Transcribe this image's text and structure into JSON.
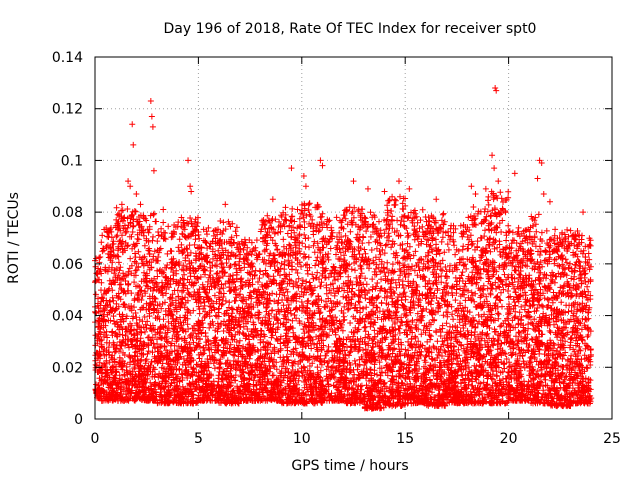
{
  "chart_data": {
    "type": "scatter",
    "title": "Day 196 of 2018, Rate Of TEC Index for receiver spt0",
    "xlabel": "GPS time / hours",
    "ylabel": "ROTI / TECUs",
    "xlim": [
      0,
      25
    ],
    "ylim": [
      0,
      0.14
    ],
    "grid": true,
    "marker": "+",
    "color": "#ff0000",
    "x_ticks": [
      {
        "value": 0,
        "label": "0"
      },
      {
        "value": 5,
        "label": "5"
      },
      {
        "value": 10,
        "label": "10"
      },
      {
        "value": 15,
        "label": "15"
      },
      {
        "value": 20,
        "label": "20"
      },
      {
        "value": 25,
        "label": "25"
      }
    ],
    "y_ticks": [
      {
        "value": 0,
        "label": "0"
      },
      {
        "value": 0.02,
        "label": "0.02"
      },
      {
        "value": 0.04,
        "label": "0.04"
      },
      {
        "value": 0.06,
        "label": "0.06"
      },
      {
        "value": 0.08,
        "label": "0.08"
      },
      {
        "value": 0.1,
        "label": "0.1"
      },
      {
        "value": 0.12,
        "label": "0.12"
      },
      {
        "value": 0.14,
        "label": "0.14"
      }
    ],
    "data_range_hours": [
      0,
      24
    ],
    "series": [
      {
        "name": "ROTI",
        "points": [
          [
            1.1,
            0.079
          ],
          [
            1.3,
            0.083
          ],
          [
            1.6,
            0.092
          ],
          [
            1.7,
            0.09
          ],
          [
            1.8,
            0.114
          ],
          [
            1.85,
            0.106
          ],
          [
            2.0,
            0.087
          ],
          [
            2.2,
            0.083
          ],
          [
            2.7,
            0.123
          ],
          [
            2.75,
            0.117
          ],
          [
            2.8,
            0.113
          ],
          [
            2.85,
            0.096
          ],
          [
            3.3,
            0.081
          ],
          [
            4.5,
            0.1
          ],
          [
            4.6,
            0.09
          ],
          [
            4.65,
            0.088
          ],
          [
            6.3,
            0.083
          ],
          [
            8.6,
            0.085
          ],
          [
            9.5,
            0.097
          ],
          [
            10.1,
            0.094
          ],
          [
            10.2,
            0.09
          ],
          [
            10.9,
            0.1
          ],
          [
            11.0,
            0.098
          ],
          [
            12.5,
            0.092
          ],
          [
            13.2,
            0.089
          ],
          [
            14.0,
            0.088
          ],
          [
            14.7,
            0.092
          ],
          [
            15.2,
            0.089
          ],
          [
            16.5,
            0.085
          ],
          [
            18.2,
            0.09
          ],
          [
            18.4,
            0.087
          ],
          [
            18.9,
            0.089
          ],
          [
            19.2,
            0.102
          ],
          [
            19.3,
            0.097
          ],
          [
            19.35,
            0.128
          ],
          [
            19.4,
            0.127
          ],
          [
            19.5,
            0.092
          ],
          [
            20.3,
            0.095
          ],
          [
            21.5,
            0.1
          ],
          [
            21.6,
            0.099
          ],
          [
            21.4,
            0.093
          ],
          [
            21.7,
            0.087
          ],
          [
            22.0,
            0.084
          ],
          [
            23.6,
            0.08
          ]
        ],
        "band_model": [
          {
            "start": 0.0,
            "end": 0.3,
            "min": 0.008,
            "max": 0.064
          },
          {
            "start": 0.3,
            "end": 1.0,
            "min": 0.007,
            "max": 0.074
          },
          {
            "start": 1.0,
            "end": 2.0,
            "min": 0.007,
            "max": 0.082
          },
          {
            "start": 2.0,
            "end": 3.0,
            "min": 0.007,
            "max": 0.08
          },
          {
            "start": 3.0,
            "end": 4.0,
            "min": 0.006,
            "max": 0.076
          },
          {
            "start": 4.0,
            "end": 5.0,
            "min": 0.006,
            "max": 0.078
          },
          {
            "start": 5.0,
            "end": 6.0,
            "min": 0.007,
            "max": 0.074
          },
          {
            "start": 6.0,
            "end": 7.0,
            "min": 0.006,
            "max": 0.078
          },
          {
            "start": 7.0,
            "end": 8.0,
            "min": 0.007,
            "max": 0.07
          },
          {
            "start": 8.0,
            "end": 9.0,
            "min": 0.007,
            "max": 0.08
          },
          {
            "start": 9.0,
            "end": 10.0,
            "min": 0.006,
            "max": 0.082
          },
          {
            "start": 10.0,
            "end": 11.0,
            "min": 0.006,
            "max": 0.084
          },
          {
            "start": 11.0,
            "end": 12.0,
            "min": 0.007,
            "max": 0.078
          },
          {
            "start": 12.0,
            "end": 13.0,
            "min": 0.006,
            "max": 0.082
          },
          {
            "start": 13.0,
            "end": 14.0,
            "min": 0.004,
            "max": 0.08
          },
          {
            "start": 14.0,
            "end": 15.0,
            "min": 0.005,
            "max": 0.086
          },
          {
            "start": 15.0,
            "end": 16.0,
            "min": 0.006,
            "max": 0.082
          },
          {
            "start": 16.0,
            "end": 17.0,
            "min": 0.005,
            "max": 0.08
          },
          {
            "start": 17.0,
            "end": 18.0,
            "min": 0.006,
            "max": 0.076
          },
          {
            "start": 18.0,
            "end": 19.0,
            "min": 0.006,
            "max": 0.082
          },
          {
            "start": 19.0,
            "end": 20.0,
            "min": 0.006,
            "max": 0.088
          },
          {
            "start": 20.0,
            "end": 21.0,
            "min": 0.007,
            "max": 0.074
          },
          {
            "start": 21.0,
            "end": 22.0,
            "min": 0.006,
            "max": 0.08
          },
          {
            "start": 22.0,
            "end": 23.0,
            "min": 0.005,
            "max": 0.074
          },
          {
            "start": 23.0,
            "end": 24.0,
            "min": 0.006,
            "max": 0.074
          }
        ],
        "points_per_hour": 360
      }
    ]
  }
}
